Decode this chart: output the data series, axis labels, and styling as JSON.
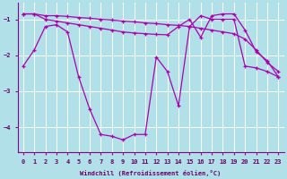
{
  "background_color": "#b2e0e8",
  "grid_color": "#ffffff",
  "line_color": "#aa00aa",
  "xlabel": "Windchill (Refroidissement éolien,°C)",
  "xlim": [
    -0.5,
    23.5
  ],
  "ylim": [
    -4.7,
    -0.55
  ],
  "yticks": [
    -4,
    -3,
    -2,
    -1
  ],
  "xticks": [
    0,
    1,
    2,
    3,
    4,
    5,
    6,
    7,
    8,
    9,
    10,
    11,
    12,
    13,
    14,
    15,
    16,
    17,
    18,
    19,
    20,
    21,
    22,
    23
  ],
  "series1_x": [
    0,
    1,
    2,
    3,
    4,
    5,
    6,
    7,
    8,
    9,
    10,
    11,
    12,
    13,
    14,
    15,
    16,
    17,
    18,
    19,
    20,
    21,
    22,
    23
  ],
  "series1_y": [
    -2.3,
    -1.85,
    -1.2,
    -1.15,
    -1.35,
    -2.6,
    -3.5,
    -4.2,
    -4.25,
    -4.35,
    -4.2,
    -4.2,
    -2.05,
    -2.45,
    -3.4,
    -1.2,
    -0.9,
    -1.0,
    -1.0,
    -1.0,
    -2.3,
    -2.35,
    -2.45,
    -2.6
  ],
  "series2_x": [
    0,
    1,
    2,
    3,
    4,
    5,
    6,
    7,
    8,
    9,
    10,
    11,
    12,
    13,
    14,
    15,
    16,
    17,
    18,
    19,
    20,
    21,
    22,
    23
  ],
  "series2_y": [
    -0.85,
    -0.85,
    -0.9,
    -0.9,
    -0.92,
    -0.95,
    -0.97,
    -1.0,
    -1.02,
    -1.05,
    -1.07,
    -1.1,
    -1.12,
    -1.15,
    -1.17,
    -1.2,
    -1.25,
    -1.3,
    -1.35,
    -1.4,
    -1.55,
    -1.85,
    -2.2,
    -2.45
  ],
  "series3_x": [
    0,
    1,
    2,
    3,
    4,
    5,
    6,
    7,
    8,
    9,
    10,
    11,
    12,
    13,
    14,
    15,
    16,
    17,
    18,
    19,
    20,
    21,
    22,
    23
  ],
  "series3_y": [
    -0.85,
    -0.85,
    -1.0,
    -1.05,
    -1.1,
    -1.15,
    -1.2,
    -1.25,
    -1.3,
    -1.35,
    -1.38,
    -1.4,
    -1.42,
    -1.43,
    -1.2,
    -1.0,
    -1.5,
    -0.9,
    -0.85,
    -0.85,
    -1.3,
    -1.9,
    -2.15,
    -2.6
  ]
}
